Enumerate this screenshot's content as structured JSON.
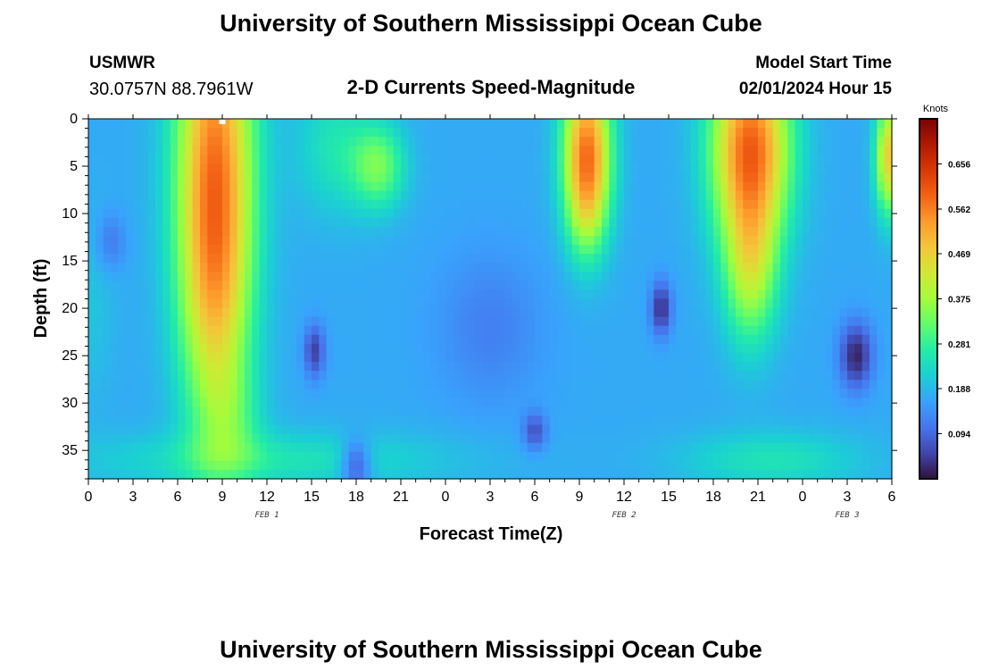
{
  "title": "University of Southern Mississippi Ocean Cube",
  "footer_title": "University of Southern Mississippi Ocean Cube",
  "station": {
    "name": "USMWR",
    "coords": "30.0757N  88.7961W"
  },
  "chart_title": "2-D Currents Speed-Magnitude",
  "model_start": {
    "label": "Model Start Time",
    "value": "02/01/2024 Hour 15"
  },
  "colorbar": {
    "unit": "Knots",
    "ticks": [
      "0.656",
      "0.562",
      "0.469",
      "0.375",
      "0.281",
      "0.188",
      "0.094"
    ],
    "tick_values": [
      0.656,
      0.562,
      0.469,
      0.375,
      0.281,
      0.188,
      0.094
    ],
    "min": 0.0,
    "max": 0.75,
    "stops": [
      "#30123b",
      "#4145ab",
      "#4675ed",
      "#39a2fc",
      "#1bcfd4",
      "#24eca6",
      "#61fc6c",
      "#a4fc3b",
      "#d1e834",
      "#f3c63a",
      "#fe9b2d",
      "#f36315",
      "#d93806",
      "#b11901",
      "#7a0402"
    ]
  },
  "chart_data": {
    "type": "heatmap",
    "xlabel": "Forecast Time(Z)",
    "ylabel": "Depth (ft)",
    "x_tick_labels": [
      "0",
      "3",
      "6",
      "9",
      "12",
      "15",
      "18",
      "21",
      "0",
      "3",
      "6",
      "9",
      "12",
      "15",
      "18",
      "21",
      "0",
      "3",
      "6"
    ],
    "x_range_hours": [
      0,
      54
    ],
    "date_labels": [
      {
        "text": "FEB 1",
        "hour": 12
      },
      {
        "text": "FEB 2",
        "hour": 36
      },
      {
        "text": "FEB 3",
        "hour": 51
      }
    ],
    "y_ticks": [
      0,
      5,
      10,
      15,
      20,
      25,
      30,
      35
    ],
    "y_range_ft": [
      0,
      38
    ],
    "y_inverted": true,
    "marker": {
      "hour": 9,
      "depth": 0
    },
    "value_unit": "Knots",
    "blobs": [
      {
        "hour": 8.5,
        "depth": 3,
        "w": 2.6,
        "h": 18,
        "amp": 0.36
      },
      {
        "hour": 8.5,
        "depth": 20,
        "w": 2.4,
        "h": 14,
        "amp": 0.2
      },
      {
        "hour": 9.5,
        "depth": 32,
        "w": 2.2,
        "h": 6,
        "amp": 0.08
      },
      {
        "hour": 19.5,
        "depth": 5,
        "w": 1.8,
        "h": 4.5,
        "amp": 0.16
      },
      {
        "hour": 16.5,
        "depth": 3,
        "w": 2.5,
        "h": 7,
        "amp": 0.08
      },
      {
        "hour": 33.5,
        "depth": 3,
        "w": 1.6,
        "h": 8,
        "amp": 0.38
      },
      {
        "hour": 33.5,
        "depth": 10,
        "w": 1.4,
        "h": 6,
        "amp": 0.12
      },
      {
        "hour": 44.5,
        "depth": 3,
        "w": 2.6,
        "h": 10,
        "amp": 0.42
      },
      {
        "hour": 44.5,
        "depth": 16,
        "w": 1.8,
        "h": 8,
        "amp": 0.2
      },
      {
        "hour": 53.8,
        "depth": 4,
        "w": 0.9,
        "h": 6,
        "amp": 0.3
      },
      {
        "hour": 0.3,
        "depth": 20,
        "w": 1.5,
        "h": 10,
        "amp": 0.03
      },
      {
        "hour": 12,
        "depth": 36,
        "w": 12,
        "h": 3,
        "amp": 0.08
      },
      {
        "hour": 46,
        "depth": 36,
        "w": 6,
        "h": 3,
        "amp": 0.08
      }
    ],
    "lows": [
      {
        "hour": 15.2,
        "depth": 24.5,
        "w": 0.7,
        "h": 2.8,
        "amp": 0.12
      },
      {
        "hour": 18.0,
        "depth": 36.5,
        "w": 1.0,
        "h": 2.6,
        "amp": 0.13
      },
      {
        "hour": 30.0,
        "depth": 33.0,
        "w": 0.8,
        "h": 2.0,
        "amp": 0.1
      },
      {
        "hour": 38.5,
        "depth": 20.0,
        "w": 0.7,
        "h": 2.8,
        "amp": 0.14
      },
      {
        "hour": 51.6,
        "depth": 25.0,
        "w": 1.1,
        "h": 3.5,
        "amp": 0.15
      },
      {
        "hour": 1.5,
        "depth": 13.0,
        "w": 1.0,
        "h": 3.0,
        "amp": 0.06
      },
      {
        "hour": 27.0,
        "depth": 22.0,
        "w": 3.5,
        "h": 8.0,
        "amp": 0.05
      }
    ],
    "base": 0.17
  }
}
